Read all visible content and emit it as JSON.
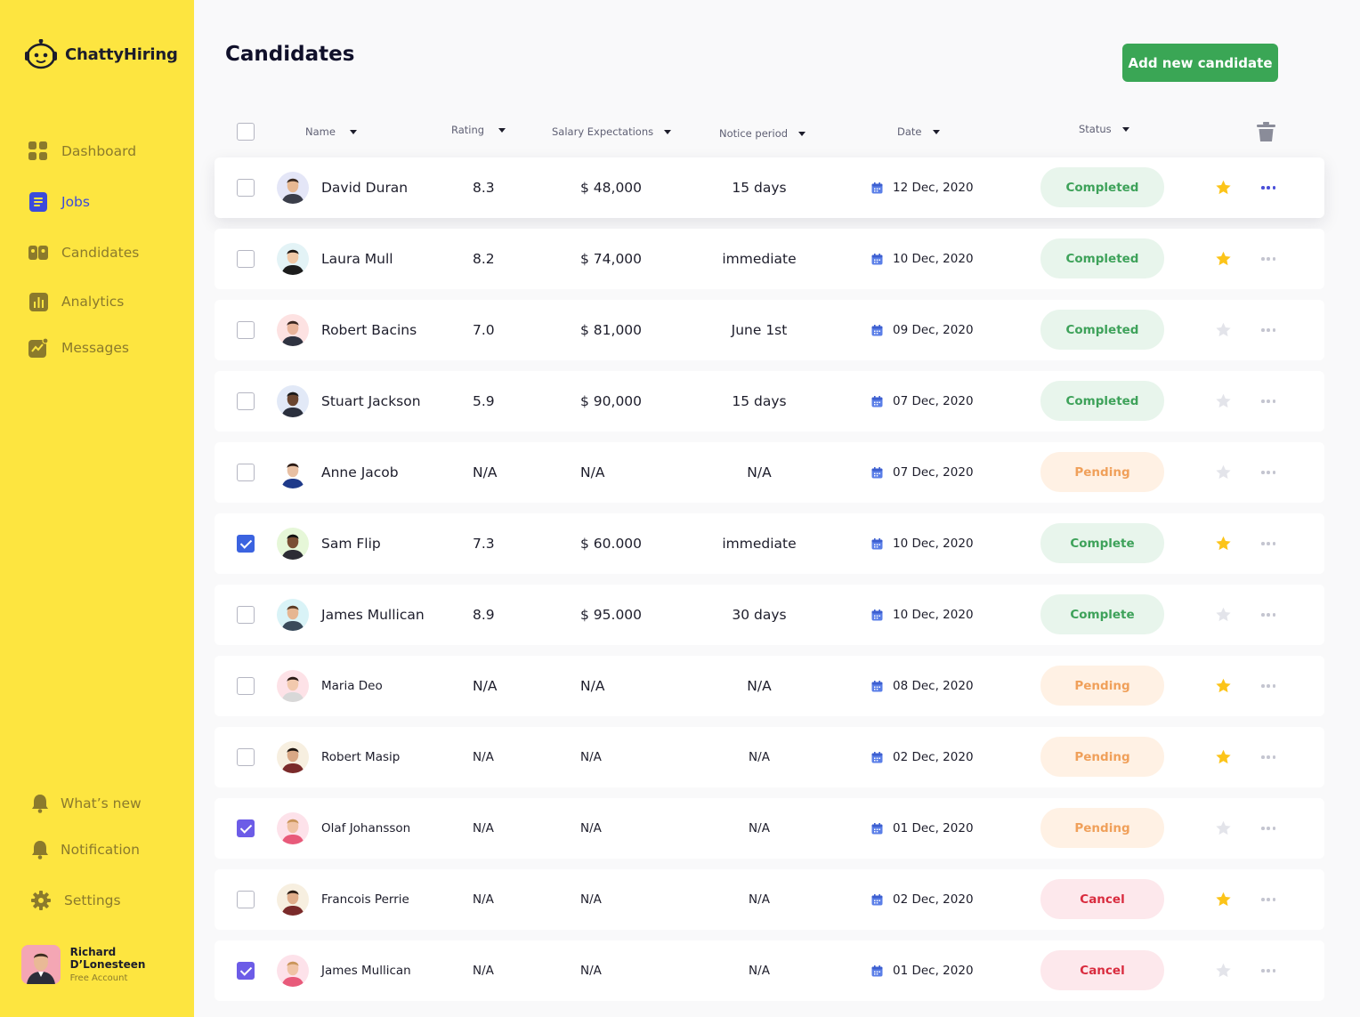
{
  "app": {
    "name": "ChattyHiring"
  },
  "sidebar": {
    "nav": [
      {
        "label": "Dashboard",
        "icon": "grid-icon"
      },
      {
        "label": "Jobs",
        "icon": "document-icon",
        "active": true
      },
      {
        "label": "Candidates",
        "icon": "people-icon"
      },
      {
        "label": "Analytics",
        "icon": "bar-chart-icon"
      },
      {
        "label": "Messages",
        "icon": "trend-icon"
      }
    ],
    "bottom_nav": [
      {
        "label": "What’s new",
        "icon": "bell-icon"
      },
      {
        "label": "Notification",
        "icon": "bell-icon"
      },
      {
        "label": "Settings",
        "icon": "gear-icon"
      }
    ],
    "user": {
      "name": "Richard D’Lonesteen",
      "plan": "Free Account"
    }
  },
  "header": {
    "title": "Candidates",
    "add_button": "Add new candidate"
  },
  "table": {
    "columns": [
      "Name",
      "Rating",
      "Salary Expectations",
      "Notice period",
      "Date",
      "Status"
    ],
    "rows": [
      {
        "name": "David Duran",
        "rating": "8.3",
        "salary": "$ 48,000",
        "notice": "15 days",
        "date": "12 Dec, 2020",
        "status": "Completed",
        "starred": true,
        "checked": false
      },
      {
        "name": "Laura Mull",
        "rating": "8.2",
        "salary": "$ 74,000",
        "notice": "immediate",
        "date": "10 Dec, 2020",
        "status": "Completed",
        "starred": true,
        "checked": false
      },
      {
        "name": "Robert Bacins",
        "rating": "7.0",
        "salary": "$ 81,000",
        "notice": "June 1st",
        "date": "09 Dec, 2020",
        "status": "Completed",
        "starred": false,
        "checked": false
      },
      {
        "name": "Stuart Jackson",
        "rating": "5.9",
        "salary": "$ 90,000",
        "notice": "15 days",
        "date": "07 Dec, 2020",
        "status": "Completed",
        "starred": false,
        "checked": false
      },
      {
        "name": "Anne Jacob",
        "rating": "N/A",
        "salary": "N/A",
        "notice": "N/A",
        "date": "07 Dec, 2020",
        "status": "Pending",
        "starred": false,
        "checked": false
      },
      {
        "name": "Sam Flip",
        "rating": "7.3",
        "salary": "$ 60.000",
        "notice": "immediate",
        "date": "10 Dec, 2020",
        "status": "Complete",
        "starred": true,
        "checked": true
      },
      {
        "name": "James Mullican",
        "rating": "8.9",
        "salary": "$ 95.000",
        "notice": "30 days",
        "date": "10 Dec, 2020",
        "status": "Complete",
        "starred": false,
        "checked": false
      },
      {
        "name": "Maria Deo",
        "rating": "N/A",
        "salary": "N/A",
        "notice": "N/A",
        "date": "08 Dec, 2020",
        "status": "Pending",
        "starred": true,
        "checked": false
      },
      {
        "name": "Robert Masip",
        "rating": "N/A",
        "salary": "N/A",
        "notice": "N/A",
        "date": "02 Dec, 2020",
        "status": "Pending",
        "starred": true,
        "checked": false
      },
      {
        "name": "Olaf Johansson",
        "rating": "N/A",
        "salary": "N/A",
        "notice": "N/A",
        "date": "01 Dec, 2020",
        "status": "Pending",
        "starred": false,
        "checked": true
      },
      {
        "name": "Francois Perrie",
        "rating": "N/A",
        "salary": "N/A",
        "notice": "N/A",
        "date": "02 Dec, 2020",
        "status": "Cancel",
        "starred": true,
        "checked": false
      },
      {
        "name": "James Mullican",
        "rating": "N/A",
        "salary": "N/A",
        "notice": "N/A",
        "date": "01 Dec, 2020",
        "status": "Cancel",
        "starred": false,
        "checked": true
      }
    ]
  },
  "colors": {
    "sidebar_bg": "#fde540",
    "accent_blue": "#3b4bdb",
    "primary_green": "#3aa655",
    "star_gold": "#fcc419",
    "completed": "#3ea25a",
    "pending": "#f0a05a",
    "cancel": "#d92b3e"
  }
}
